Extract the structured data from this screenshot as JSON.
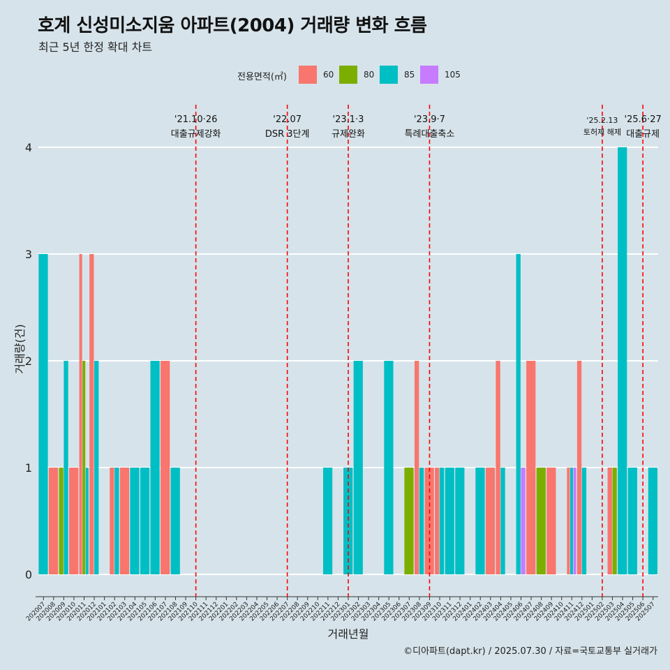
{
  "header": {
    "title": "호계 신성미소지움 아파트(2004) 거래량 변화 흐름",
    "subtitle": "최근 5년 한정 확대 차트"
  },
  "legend": {
    "title": "전용면적(㎡)",
    "items": [
      {
        "label": "60",
        "color": "#f8766d"
      },
      {
        "label": "80",
        "color": "#7cae00"
      },
      {
        "label": "85",
        "color": "#00bfc4"
      },
      {
        "label": "105",
        "color": "#c77cff"
      }
    ]
  },
  "caption": "©디아파트(dapt.kr) / 2025.07.30 / 자료=국토교통부 실거래가",
  "chart_data": {
    "type": "bar",
    "xlabel": "거래년월",
    "ylabel": "거래량(건)",
    "ylim": [
      0,
      4
    ],
    "yticks": [
      0,
      1,
      2,
      3,
      4
    ],
    "grid": true,
    "categories": [
      "202007",
      "202008",
      "202009",
      "202010",
      "202011",
      "202012",
      "202101",
      "202102",
      "202103",
      "202104",
      "202105",
      "202106",
      "202107",
      "202108",
      "202109",
      "202110",
      "202111",
      "202112",
      "202201",
      "202202",
      "202203",
      "202204",
      "202205",
      "202206",
      "202207",
      "202208",
      "202209",
      "202210",
      "202211",
      "202212",
      "202301",
      "202302",
      "202303",
      "202304",
      "202305",
      "202306",
      "202307",
      "202308",
      "202309",
      "202310",
      "202311",
      "202312",
      "202401",
      "202402",
      "202403",
      "202404",
      "202405",
      "202406",
      "202407",
      "202408",
      "202409",
      "202410",
      "202411",
      "202412",
      "202501",
      "202502",
      "202503",
      "202504",
      "202505",
      "202506",
      "202507"
    ],
    "series": [
      {
        "name": "60",
        "color": "#f8766d",
        "values": [
          0,
          1,
          0,
          1,
          3,
          3,
          0,
          1,
          1,
          0,
          0,
          0,
          2,
          0,
          0,
          0,
          0,
          0,
          0,
          0,
          0,
          0,
          0,
          0,
          0,
          0,
          0,
          0,
          0,
          0,
          0,
          0,
          0,
          0,
          0,
          0,
          0,
          2,
          1,
          1,
          0,
          0,
          0,
          0,
          1,
          2,
          0,
          0,
          2,
          0,
          1,
          0,
          1,
          2,
          0,
          0,
          1,
          0,
          0,
          0,
          0
        ]
      },
      {
        "name": "80",
        "color": "#7cae00",
        "values": [
          0,
          0,
          1,
          0,
          2,
          0,
          0,
          0,
          0,
          0,
          0,
          0,
          0,
          0,
          0,
          0,
          0,
          0,
          0,
          0,
          0,
          0,
          0,
          0,
          0,
          0,
          0,
          0,
          0,
          0,
          0,
          0,
          0,
          0,
          0,
          0,
          1,
          0,
          0,
          0,
          0,
          0,
          0,
          0,
          0,
          0,
          0,
          0,
          0,
          1,
          0,
          0,
          0,
          0,
          0,
          0,
          1,
          0,
          0,
          0,
          0
        ]
      },
      {
        "name": "85",
        "color": "#00bfc4",
        "values": [
          3,
          0,
          2,
          0,
          1,
          2,
          0,
          1,
          0,
          1,
          1,
          2,
          0,
          1,
          0,
          0,
          0,
          0,
          0,
          0,
          0,
          0,
          0,
          0,
          0,
          0,
          0,
          0,
          1,
          0,
          1,
          2,
          0,
          0,
          2,
          0,
          0,
          1,
          0,
          1,
          1,
          1,
          0,
          1,
          0,
          1,
          0,
          3,
          0,
          0,
          0,
          0,
          1,
          1,
          0,
          0,
          0,
          4,
          1,
          0,
          1
        ]
      },
      {
        "name": "105",
        "color": "#c77cff",
        "values": [
          0,
          0,
          0,
          0,
          0,
          0,
          0,
          0,
          0,
          0,
          0,
          0,
          0,
          0,
          0,
          0,
          0,
          0,
          0,
          0,
          0,
          0,
          0,
          0,
          0,
          0,
          0,
          0,
          0,
          0,
          0,
          0,
          0,
          0,
          0,
          0,
          0,
          0,
          0,
          0,
          0,
          0,
          0,
          0,
          0,
          0,
          0,
          1,
          0,
          0,
          0,
          0,
          1,
          0,
          0,
          0,
          0,
          0,
          0,
          0,
          0
        ]
      }
    ],
    "events": [
      {
        "after": "202110",
        "date": "'21.10·26",
        "label": "대출규제강화"
      },
      {
        "after": "202207",
        "date": "'22.07",
        "label": "DSR 3단계"
      },
      {
        "after": "202301",
        "date": "'23.1·3",
        "label": "규제완화"
      },
      {
        "after": "202309",
        "date": "'23.9·7",
        "label": "특례대출축소"
      },
      {
        "after": "202502",
        "date": "'25.2.13",
        "label": "토허제 해제"
      },
      {
        "after": "202506",
        "date": "'25.6·27",
        "label": "대출규제"
      }
    ],
    "event_line_color": "#ff0000"
  }
}
